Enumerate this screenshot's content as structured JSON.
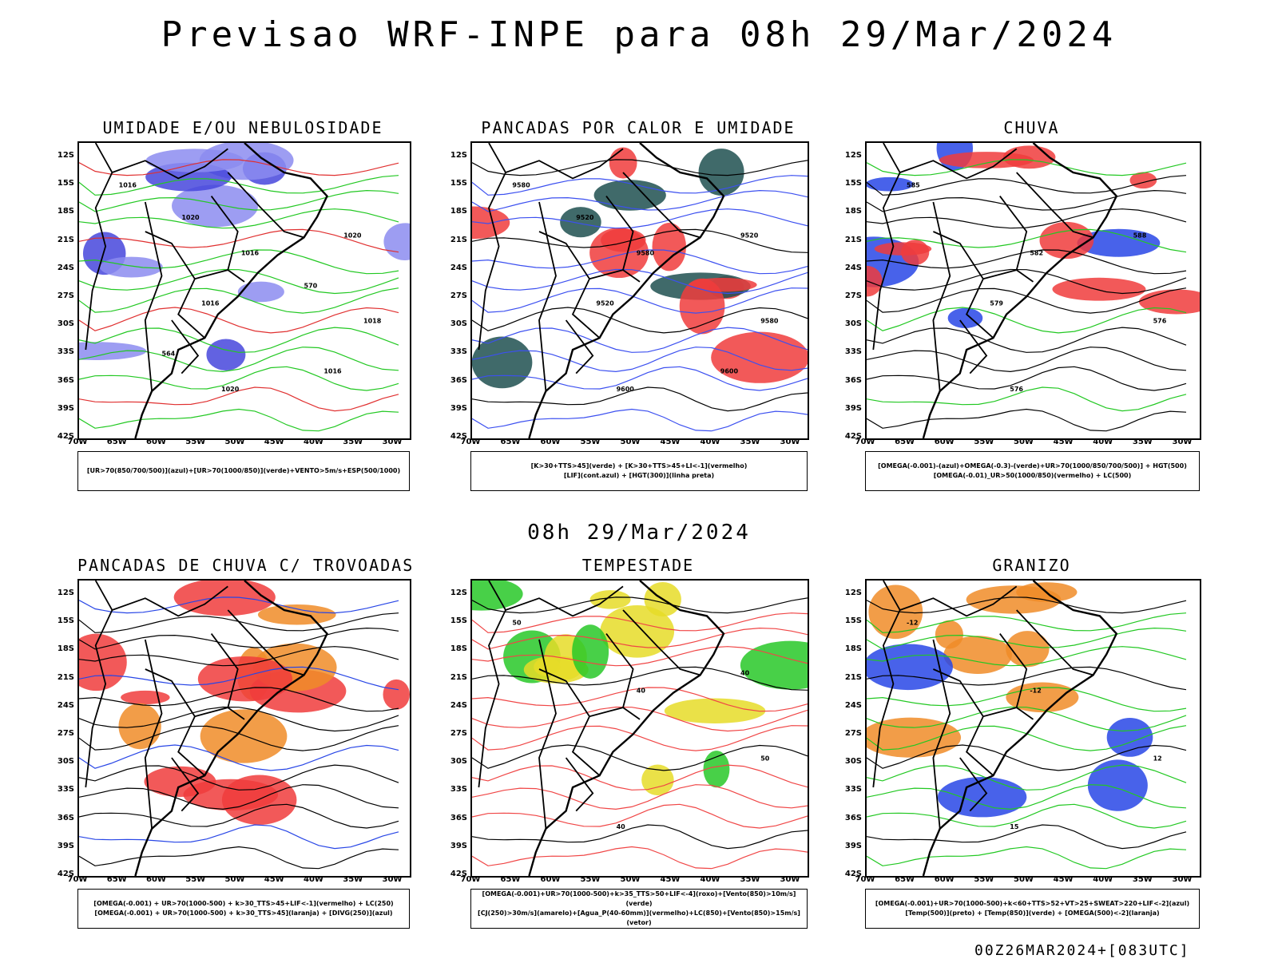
{
  "header": {
    "title": "Previsao WRF-INPE  para 08h 29/Mar/2024",
    "mid_time": "08h 29/Mar/2024",
    "footer": "00Z26MAR2024+[083UTC]"
  },
  "axes": {
    "lat_labels": [
      "12S",
      "15S",
      "18S",
      "21S",
      "24S",
      "27S",
      "30S",
      "33S",
      "36S",
      "39S",
      "42S"
    ],
    "lon_labels": [
      "70W",
      "65W",
      "60W",
      "55W",
      "50W",
      "45W",
      "40W",
      "35W",
      "30W"
    ]
  },
  "panels": [
    {
      "id": "umidade",
      "title": "UMIDADE E/OU NEBULOSIDADE",
      "legend": [
        "[UR>70(850/700/500)](azul)+[UR>70(1000/850)](verde)+VENTO>5m/s+ESP(500/1000)"
      ],
      "labels": [
        "1016",
        "1016",
        "1018",
        "1020",
        "1020",
        "1016",
        "1016",
        "1020",
        "570",
        "564"
      ],
      "colors": {
        "fill": "#8c8cf0",
        "fill2": "#4646dc",
        "line": "#22c822",
        "line2": "#e03030"
      }
    },
    {
      "id": "pancadas",
      "title": "PANCADAS POR CALOR E UMIDADE",
      "legend": [
        "[K>30+TTS>45](verde) + [K>30+TTS>45+LI<-1](vermelho)",
        "[LIF](cont.azul) + [HGT(300)](linha preta)"
      ],
      "labels": [
        "9580",
        "9580",
        "9580",
        "9600",
        "9520",
        "9520",
        "9600",
        "9520"
      ],
      "colors": {
        "fill": "#f03c3c",
        "fill2": "#1e5050",
        "line": "#3c50f0",
        "line2": "#000000"
      }
    },
    {
      "id": "chuva",
      "title": "CHUVA",
      "legend": [
        "[OMEGA(-0.001)-(azul)+OMEGA(-0.3)-(verde)+UR>70(1000/850/700/500)] + HGT(500)",
        "[OMEGA(-0.01)_UR>50(1000/850)(vermelho) + LC(500)"
      ],
      "labels": [
        "585",
        "582",
        "576",
        "576",
        "588",
        "579"
      ],
      "colors": {
        "fill": "#f03c3c",
        "fill2": "#2846e6",
        "line": "#000000",
        "line2": "#22c822"
      }
    },
    {
      "id": "trovoadas",
      "title": "PANCADAS DE CHUVA C/ TROVOADAS",
      "legend": [
        "[OMEGA(-0.001) + UR>70(1000-500) + k>30_TTS>45+LIF<-1](vermelho) + LC(250)",
        "[OMEGA(-0.001) + UR>70(1000-500) + k>30_TTS>45](laranja) + [DIVG(250)](azul)"
      ],
      "labels": [],
      "colors": {
        "fill": "#f03c3c",
        "fill2": "#f08c28",
        "line": "#000000",
        "line2": "#2846e6"
      }
    },
    {
      "id": "tempestade",
      "title": "TEMPESTADE",
      "legend": [
        "[OMEGA(-0.001)+UR>70(1000-500)+k>35_TTS>50+LIF<-4](roxo)+[Vento(850)>10m/s](verde)",
        "[CJ(250)>30m/s](amarelo)+[Agua_P(40-60mm)](vermelho)+LC(850)+[Vento(850)>15m/s](vetor)"
      ],
      "labels": [
        "50",
        "40",
        "50",
        "40",
        "40"
      ],
      "colors": {
        "fill": "#e6dc28",
        "fill2": "#28c828",
        "line": "#f04646",
        "line2": "#000000"
      }
    },
    {
      "id": "granizo",
      "title": "GRANIZO",
      "legend": [
        "[OMEGA(-0.001)+UR>70(1000-500)+k<60+TTS>52+VT>25+SWEAT>220+LIF<-2](azul)",
        "[Temp(500)](preto) + [Temp(850)](verde) + [OMEGA(500)<-2](laranja)"
      ],
      "labels": [
        "-12",
        "-12",
        "12",
        "15"
      ],
      "colors": {
        "fill": "#f08c28",
        "fill2": "#2846e6",
        "line": "#22c822",
        "line2": "#000000"
      }
    }
  ]
}
